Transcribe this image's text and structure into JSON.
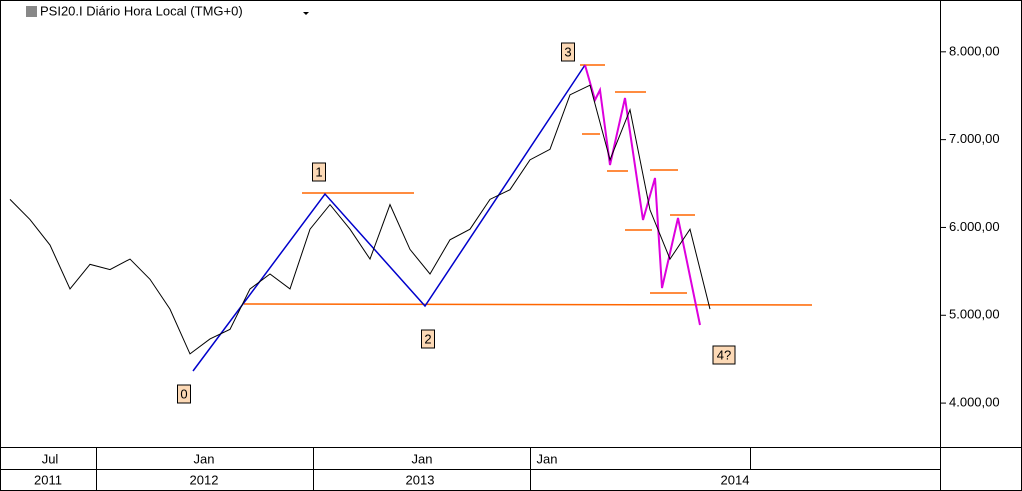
{
  "chart_data": {
    "type": "line",
    "title": "PSI20.I Diário Hora Local (TMG+0)",
    "categories": [
      null,
      null,
      null,
      null,
      null,
      null,
      null,
      null,
      null,
      null,
      null,
      null,
      null,
      null,
      null,
      null,
      null,
      null,
      null,
      null,
      null,
      null,
      null,
      null,
      null,
      null,
      null,
      null,
      null,
      null,
      null,
      null,
      null,
      null,
      null,
      null,
      null,
      null,
      null,
      null,
      null,
      null,
      null,
      null,
      null,
      null,
      null
    ],
    "series": [
      {
        "color": "#000000",
        "values": [
          6320,
          6090,
          5800,
          5300,
          5580,
          5520,
          5640,
          5410,
          5070,
          4560,
          4730,
          4840,
          5300,
          5470,
          5300,
          5980,
          6260,
          5980,
          5640,
          6260,
          5750,
          5470,
          5860,
          5980,
          6320,
          6430,
          6770,
          6890,
          7510,
          7620,
          6770,
          7340,
          6200,
          5640,
          5980,
          5070,
          null,
          null,
          null,
          null,
          null,
          null,
          null,
          null,
          null,
          null,
          null
        ]
      }
    ],
    "ylim": [
      3500,
      8590
    ],
    "yticks": [
      {
        "value": 4000,
        "label": "4.000,00"
      },
      {
        "value": 5000,
        "label": "5.000,00"
      },
      {
        "value": 6000,
        "label": "6.000,00"
      },
      {
        "value": 7000,
        "label": "7.000,00"
      },
      {
        "value": 8000,
        "label": "8.000,00"
      }
    ],
    "x_labels_month": [
      "Jul",
      "Jan",
      "Jan",
      "Jan"
    ],
    "x_labels_year": [
      "2011",
      "2012",
      "2013",
      "2014"
    ],
    "wave_labels": [
      "0",
      "1",
      "2",
      "3",
      "4?"
    ]
  }
}
